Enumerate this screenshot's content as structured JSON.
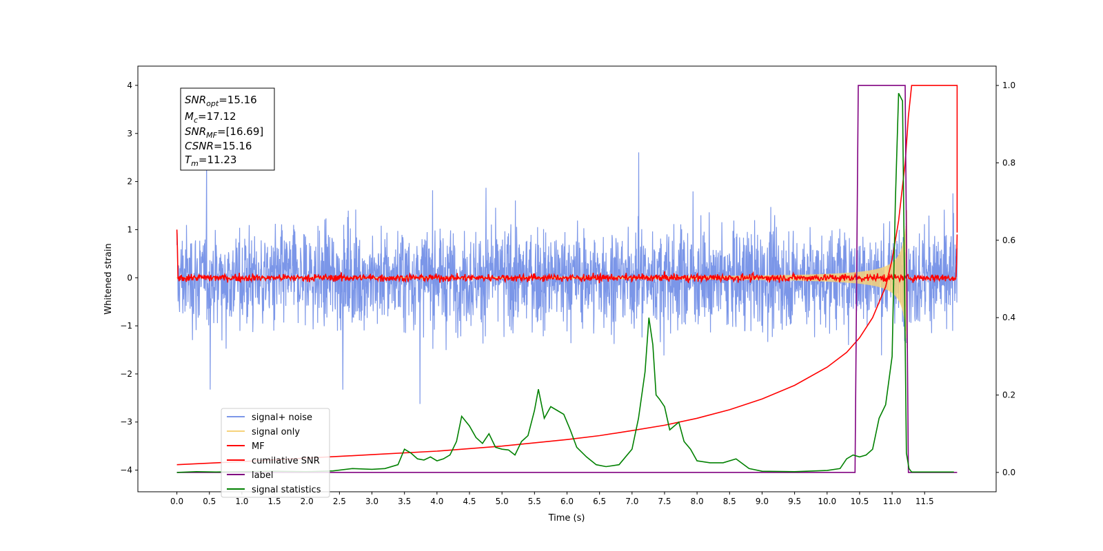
{
  "chart_data": {
    "type": "line",
    "xlabel": "Time (s)",
    "ylabel": "Whitened strain",
    "xlim": [
      -0.6,
      12.6
    ],
    "ylim": [
      -4.45,
      4.4
    ],
    "ylim_right": [
      -0.05,
      1.05
    ],
    "x_ticks": [
      "0.0",
      "0.5",
      "1.0",
      "1.5",
      "2.0",
      "2.5",
      "3.0",
      "3.5",
      "4.0",
      "4.5",
      "5.0",
      "5.5",
      "6.0",
      "6.5",
      "7.0",
      "7.5",
      "8.0",
      "8.5",
      "9.0",
      "9.5",
      "10.0",
      "10.5",
      "11.0",
      "11.5"
    ],
    "y_ticks": [
      "−4",
      "−3",
      "−2",
      "−1",
      "0",
      "1",
      "2",
      "3",
      "4"
    ],
    "y_ticks_right": [
      "0.0",
      "0.2",
      "0.4",
      "0.6",
      "0.8",
      "1.0"
    ],
    "grid": false,
    "legend_position": "lower-left",
    "legend": [
      {
        "label": "signal+ noise",
        "color": "#7b96e8"
      },
      {
        "label": "signal only",
        "color": "#f6d27a"
      },
      {
        "label": "MF",
        "color": "#ff0000"
      },
      {
        "label": "cumilative SNR",
        "color": "#ff0000"
      },
      {
        "label": "label",
        "color": "#800080"
      },
      {
        "label": "signal statistics",
        "color": "#008000"
      }
    ],
    "info_box": {
      "snr_opt_value": "=15.16",
      "mc_value": "=17.12",
      "snr_mf_value": "=[16.69]",
      "csnr_value": "=15.16",
      "tm_value": "=11.23"
    },
    "series": [
      {
        "name": "cumilative SNR",
        "axis": "right",
        "x": [
          0.0,
          0.5,
          1.0,
          2.0,
          3.0,
          4.0,
          5.0,
          6.0,
          6.5,
          7.0,
          7.5,
          8.0,
          8.5,
          9.0,
          9.5,
          10.0,
          10.3,
          10.5,
          10.7,
          10.9,
          11.0,
          11.1,
          11.2,
          11.25,
          11.3,
          12.0,
          12.0
        ],
        "y": [
          0.02,
          0.024,
          0.028,
          0.037,
          0.046,
          0.055,
          0.068,
          0.085,
          0.095,
          0.108,
          0.122,
          0.14,
          0.162,
          0.19,
          0.225,
          0.272,
          0.31,
          0.348,
          0.4,
          0.48,
          0.55,
          0.65,
          0.8,
          0.92,
          1.0,
          1.0,
          0.62
        ]
      },
      {
        "name": "label",
        "axis": "right",
        "x": [
          0.0,
          10.43,
          10.48,
          11.2,
          11.25,
          12.0
        ],
        "y": [
          0.0,
          0.0,
          1.0,
          1.0,
          0.0,
          0.0
        ]
      },
      {
        "name": "signal statistics",
        "axis": "right",
        "x": [
          0.0,
          0.3,
          0.6,
          1.0,
          1.5,
          2.0,
          2.4,
          2.7,
          3.0,
          3.2,
          3.4,
          3.5,
          3.6,
          3.7,
          3.8,
          3.9,
          4.0,
          4.1,
          4.2,
          4.3,
          4.38,
          4.5,
          4.6,
          4.7,
          4.8,
          4.9,
          5.0,
          5.1,
          5.2,
          5.3,
          5.4,
          5.5,
          5.56,
          5.65,
          5.75,
          5.85,
          5.95,
          6.05,
          6.15,
          6.3,
          6.45,
          6.6,
          6.8,
          7.0,
          7.1,
          7.2,
          7.26,
          7.32,
          7.37,
          7.42,
          7.5,
          7.58,
          7.65,
          7.72,
          7.8,
          7.9,
          8.0,
          8.2,
          8.4,
          8.6,
          8.8,
          9.0,
          9.5,
          10.0,
          10.2,
          10.3,
          10.4,
          10.5,
          10.6,
          10.7,
          10.8,
          10.9,
          11.0,
          11.05,
          11.1,
          11.16,
          11.22,
          11.26,
          11.3,
          11.6,
          11.95
        ],
        "y": [
          0.0,
          0.002,
          0.001,
          0.002,
          0.003,
          0.002,
          0.004,
          0.01,
          0.008,
          0.01,
          0.02,
          0.06,
          0.05,
          0.035,
          0.032,
          0.04,
          0.03,
          0.035,
          0.045,
          0.08,
          0.145,
          0.12,
          0.09,
          0.075,
          0.1,
          0.065,
          0.06,
          0.058,
          0.045,
          0.08,
          0.095,
          0.16,
          0.215,
          0.14,
          0.17,
          0.16,
          0.15,
          0.11,
          0.065,
          0.04,
          0.02,
          0.015,
          0.02,
          0.06,
          0.14,
          0.26,
          0.4,
          0.33,
          0.2,
          0.19,
          0.17,
          0.11,
          0.12,
          0.13,
          0.08,
          0.06,
          0.03,
          0.025,
          0.025,
          0.035,
          0.01,
          0.003,
          0.002,
          0.005,
          0.01,
          0.035,
          0.045,
          0.04,
          0.045,
          0.06,
          0.14,
          0.175,
          0.3,
          0.7,
          0.98,
          0.96,
          0.05,
          0.01,
          0.001,
          0.001,
          0.001
        ]
      }
    ]
  }
}
